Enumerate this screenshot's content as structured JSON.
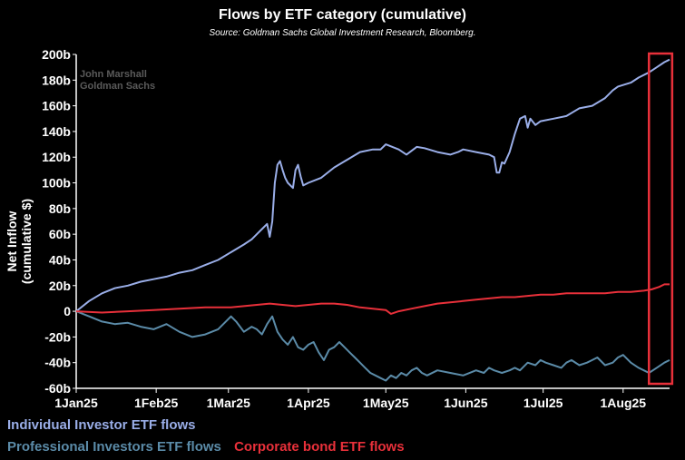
{
  "chart_data": {
    "type": "line",
    "title": "Flows by ETF category (cumulative)",
    "subtitle": "Source: Goldman Sachs Global Investment Research, Bloomberg.",
    "watermark": [
      "John Marshall",
      "Goldman Sachs"
    ],
    "ylabel": "Net Inflow (cumulative $)",
    "xlabel": "",
    "ylim": [
      -60,
      200
    ],
    "yticks": [
      200,
      180,
      160,
      140,
      120,
      100,
      80,
      60,
      40,
      20,
      0,
      -20,
      -40,
      -60
    ],
    "ytick_labels": [
      "200b",
      "180b",
      "160b",
      "140b",
      "120b",
      "100b",
      "80b",
      "60b",
      "40b",
      "20b",
      "0",
      "-20b",
      "-40b",
      "-60b"
    ],
    "xlim_day": [
      0,
      230
    ],
    "xticks": [
      {
        "day": 0,
        "label": "1Jan25"
      },
      {
        "day": 31,
        "label": "1Feb25"
      },
      {
        "day": 59,
        "label": "1Mar25"
      },
      {
        "day": 90,
        "label": "1Apr25"
      },
      {
        "day": 120,
        "label": "1May25"
      },
      {
        "day": 151,
        "label": "1Jun25"
      },
      {
        "day": 181,
        "label": "1Jul25"
      },
      {
        "day": 212,
        "label": "1Aug25"
      }
    ],
    "series": [
      {
        "name": "Individual Investor ETF flows",
        "color": "#9aaee8",
        "points": [
          [
            0,
            0
          ],
          [
            5,
            8
          ],
          [
            10,
            14
          ],
          [
            15,
            18
          ],
          [
            20,
            20
          ],
          [
            25,
            23
          ],
          [
            30,
            25
          ],
          [
            35,
            27
          ],
          [
            40,
            30
          ],
          [
            45,
            32
          ],
          [
            50,
            36
          ],
          [
            55,
            40
          ],
          [
            60,
            46
          ],
          [
            65,
            52
          ],
          [
            68,
            56
          ],
          [
            70,
            60
          ],
          [
            72,
            64
          ],
          [
            74,
            68
          ],
          [
            75,
            58
          ],
          [
            76,
            70
          ],
          [
            77,
            100
          ],
          [
            78,
            114
          ],
          [
            79,
            117
          ],
          [
            80,
            110
          ],
          [
            81,
            104
          ],
          [
            82,
            100
          ],
          [
            84,
            96
          ],
          [
            85,
            110
          ],
          [
            86,
            114
          ],
          [
            87,
            105
          ],
          [
            88,
            98
          ],
          [
            90,
            100
          ],
          [
            95,
            104
          ],
          [
            100,
            112
          ],
          [
            105,
            118
          ],
          [
            110,
            124
          ],
          [
            115,
            126
          ],
          [
            118,
            126
          ],
          [
            120,
            130
          ],
          [
            125,
            126
          ],
          [
            128,
            122
          ],
          [
            132,
            128
          ],
          [
            135,
            127
          ],
          [
            140,
            124
          ],
          [
            145,
            122
          ],
          [
            148,
            124
          ],
          [
            150,
            126
          ],
          [
            155,
            124
          ],
          [
            160,
            122
          ],
          [
            162,
            120
          ],
          [
            163,
            108
          ],
          [
            164,
            108
          ],
          [
            165,
            116
          ],
          [
            166,
            115
          ],
          [
            168,
            124
          ],
          [
            170,
            138
          ],
          [
            172,
            150
          ],
          [
            174,
            152
          ],
          [
            175,
            143
          ],
          [
            176,
            150
          ],
          [
            178,
            145
          ],
          [
            180,
            148
          ],
          [
            185,
            150
          ],
          [
            190,
            152
          ],
          [
            195,
            158
          ],
          [
            200,
            160
          ],
          [
            205,
            166
          ],
          [
            208,
            172
          ],
          [
            210,
            175
          ],
          [
            215,
            178
          ],
          [
            218,
            182
          ],
          [
            222,
            186
          ],
          [
            225,
            190
          ],
          [
            228,
            194
          ],
          [
            230,
            196
          ]
        ]
      },
      {
        "name": "Professional Investors ETF flows",
        "color": "#5b8ba8",
        "points": [
          [
            0,
            0
          ],
          [
            5,
            -4
          ],
          [
            10,
            -8
          ],
          [
            15,
            -10
          ],
          [
            20,
            -9
          ],
          [
            25,
            -12
          ],
          [
            30,
            -14
          ],
          [
            35,
            -10
          ],
          [
            40,
            -16
          ],
          [
            45,
            -20
          ],
          [
            50,
            -18
          ],
          [
            55,
            -14
          ],
          [
            58,
            -8
          ],
          [
            60,
            -4
          ],
          [
            62,
            -8
          ],
          [
            65,
            -16
          ],
          [
            68,
            -12
          ],
          [
            70,
            -14
          ],
          [
            72,
            -18
          ],
          [
            74,
            -10
          ],
          [
            76,
            -4
          ],
          [
            78,
            -16
          ],
          [
            80,
            -22
          ],
          [
            82,
            -26
          ],
          [
            84,
            -20
          ],
          [
            86,
            -28
          ],
          [
            88,
            -30
          ],
          [
            90,
            -26
          ],
          [
            92,
            -24
          ],
          [
            94,
            -32
          ],
          [
            96,
            -38
          ],
          [
            98,
            -30
          ],
          [
            100,
            -28
          ],
          [
            102,
            -24
          ],
          [
            104,
            -28
          ],
          [
            106,
            -32
          ],
          [
            108,
            -36
          ],
          [
            110,
            -40
          ],
          [
            112,
            -44
          ],
          [
            114,
            -48
          ],
          [
            116,
            -50
          ],
          [
            118,
            -52
          ],
          [
            120,
            -54
          ],
          [
            122,
            -50
          ],
          [
            124,
            -52
          ],
          [
            126,
            -48
          ],
          [
            128,
            -50
          ],
          [
            130,
            -46
          ],
          [
            132,
            -44
          ],
          [
            134,
            -48
          ],
          [
            136,
            -50
          ],
          [
            140,
            -46
          ],
          [
            145,
            -48
          ],
          [
            150,
            -50
          ],
          [
            155,
            -46
          ],
          [
            158,
            -48
          ],
          [
            160,
            -44
          ],
          [
            162,
            -46
          ],
          [
            165,
            -48
          ],
          [
            168,
            -46
          ],
          [
            170,
            -44
          ],
          [
            172,
            -46
          ],
          [
            175,
            -40
          ],
          [
            178,
            -42
          ],
          [
            180,
            -38
          ],
          [
            182,
            -40
          ],
          [
            185,
            -42
          ],
          [
            188,
            -44
          ],
          [
            190,
            -40
          ],
          [
            192,
            -38
          ],
          [
            195,
            -42
          ],
          [
            198,
            -40
          ],
          [
            200,
            -38
          ],
          [
            202,
            -36
          ],
          [
            205,
            -42
          ],
          [
            208,
            -40
          ],
          [
            210,
            -36
          ],
          [
            212,
            -34
          ],
          [
            215,
            -40
          ],
          [
            218,
            -44
          ],
          [
            220,
            -46
          ],
          [
            222,
            -48
          ],
          [
            225,
            -44
          ],
          [
            228,
            -40
          ],
          [
            230,
            -38
          ]
        ]
      },
      {
        "name": "Corporate bond ETF flows",
        "color": "#e8303a",
        "points": [
          [
            0,
            0
          ],
          [
            10,
            -1
          ],
          [
            20,
            0
          ],
          [
            30,
            1
          ],
          [
            40,
            2
          ],
          [
            50,
            3
          ],
          [
            60,
            3
          ],
          [
            65,
            4
          ],
          [
            70,
            5
          ],
          [
            75,
            6
          ],
          [
            80,
            5
          ],
          [
            85,
            4
          ],
          [
            90,
            5
          ],
          [
            95,
            6
          ],
          [
            100,
            6
          ],
          [
            105,
            5
          ],
          [
            110,
            3
          ],
          [
            115,
            2
          ],
          [
            120,
            1
          ],
          [
            122,
            -2
          ],
          [
            125,
            0
          ],
          [
            130,
            2
          ],
          [
            135,
            4
          ],
          [
            140,
            6
          ],
          [
            145,
            7
          ],
          [
            150,
            8
          ],
          [
            155,
            9
          ],
          [
            160,
            10
          ],
          [
            165,
            11
          ],
          [
            170,
            11
          ],
          [
            175,
            12
          ],
          [
            180,
            13
          ],
          [
            185,
            13
          ],
          [
            190,
            14
          ],
          [
            195,
            14
          ],
          [
            200,
            14
          ],
          [
            205,
            14
          ],
          [
            210,
            15
          ],
          [
            215,
            15
          ],
          [
            220,
            16
          ],
          [
            223,
            17
          ],
          [
            226,
            19
          ],
          [
            228,
            21
          ],
          [
            230,
            21
          ]
        ]
      }
    ],
    "highlight_box": {
      "day_start": 222,
      "day_end": 231,
      "color": "#e8303a"
    },
    "legend": [
      "Individual Investor ETF flows",
      "Professional Investors ETF flows",
      "Corporate bond ETF flows"
    ],
    "legend_position": "bottom",
    "grid": false
  }
}
